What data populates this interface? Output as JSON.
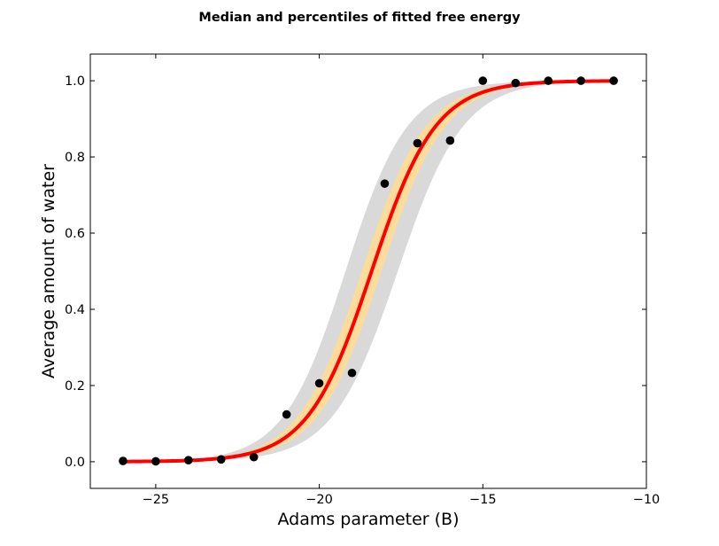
{
  "chart_data": {
    "type": "line",
    "title": "Median and percentiles of fitted free energy",
    "xlabel": "Adams parameter (B)",
    "ylabel": "Average amount of water",
    "xlim": [
      -27,
      -10
    ],
    "ylim": [
      -0.07,
      1.07
    ],
    "x_ticks": [
      -25,
      -20,
      -15,
      -10
    ],
    "x_tick_labels": [
      "−25",
      "−20",
      "−15",
      "−10"
    ],
    "y_ticks": [
      0.0,
      0.2,
      0.4,
      0.6,
      0.8,
      1.0
    ],
    "y_tick_labels": [
      "0.0",
      "0.2",
      "0.4",
      "0.6",
      "0.8",
      "1.0"
    ],
    "grid": false,
    "colors": {
      "median_line": "#ff0000",
      "inner_band": "#fbdc9a",
      "outer_band": "#d9d9d9",
      "points": "#000000"
    },
    "median_curve": {
      "midpoint": -18.4,
      "scale": 0.98
    },
    "inner_band": {
      "lower_midpoint": -18.1,
      "upper_midpoint": -18.7,
      "scale": 0.98
    },
    "outer_band": {
      "lower_midpoint": -17.6,
      "upper_midpoint": -19.2,
      "lower_scale": 1.0,
      "upper_scale": 0.95
    },
    "points": {
      "x": [
        -26,
        -25,
        -24,
        -23,
        -22,
        -21,
        -20,
        -19,
        -18,
        -17,
        -16,
        -15,
        -14,
        -13,
        -12,
        -11
      ],
      "y": [
        0.002,
        0.001,
        0.004,
        0.006,
        0.012,
        0.124,
        0.206,
        0.233,
        0.73,
        0.836,
        0.843,
        1.0,
        0.994,
        1.0,
        1.0,
        1.0
      ]
    }
  }
}
